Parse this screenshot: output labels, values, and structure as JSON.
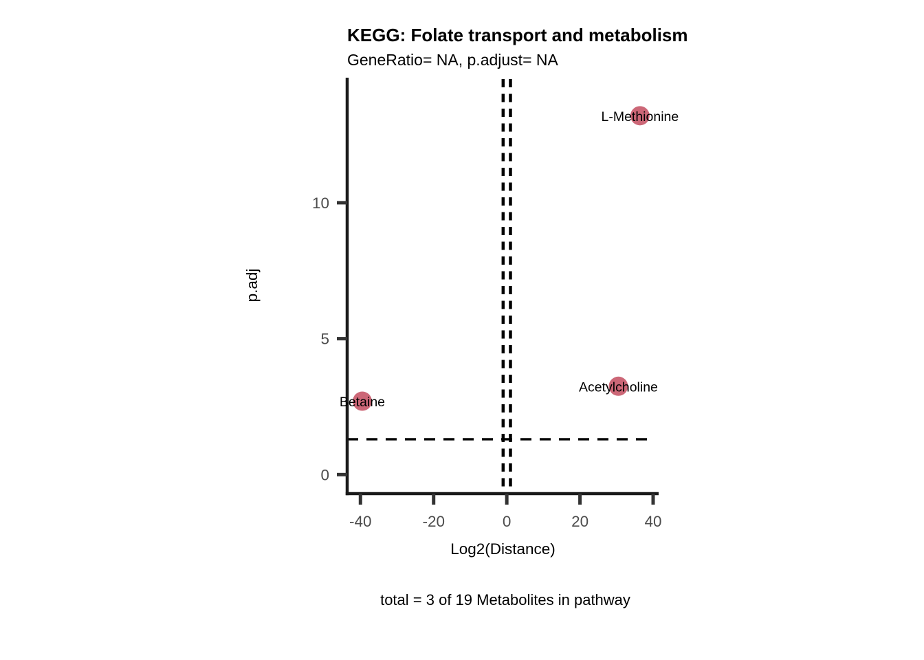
{
  "figure": {
    "title": "KEGG: Folate transport and metabolism",
    "subtitle": "GeneRatio= NA, p.adjust= NA",
    "caption": "total = 3 of 19 Metabolites in pathway",
    "xlabel": "Log2(Distance)",
    "ylabel": "p.adj"
  },
  "chart_data": {
    "type": "scatter",
    "title": "KEGG: Folate transport and metabolism",
    "subtitle": "GeneRatio= NA, p.adjust= NA",
    "caption": "total = 3 of 19 Metabolites in pathway",
    "xlabel": "Log2(Distance)",
    "ylabel": "p.adj",
    "xlim": [
      -44,
      41.5
    ],
    "ylim": [
      -0.7,
      14.6
    ],
    "x_ticks": [
      -40,
      -20,
      0,
      20,
      40
    ],
    "y_ticks": [
      0,
      5,
      10
    ],
    "grid": false,
    "legend": "none",
    "points": [
      {
        "label": "L-Methionine",
        "x": 36.4,
        "y": 13.2
      },
      {
        "label": "Acetylcholine",
        "x": 30.5,
        "y": 3.25
      },
      {
        "label": "Betaine",
        "x": -39.5,
        "y": 2.7
      }
    ],
    "threshold_vlines_x": [
      -1,
      1
    ],
    "threshold_hline_y": 1.3,
    "threshold_line_style": "dashed"
  },
  "colors": {
    "point_fill": "#C85A6B",
    "axis_line": "#1a1a1a",
    "tick_mark": "#333333",
    "tick_label": "#4d4d4d",
    "threshold_line": "#000000",
    "text": "#000000",
    "background": "#ffffff"
  }
}
